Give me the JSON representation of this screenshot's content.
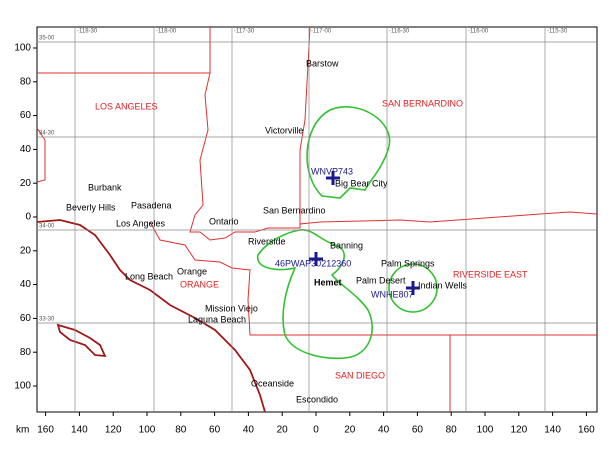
{
  "axes": {
    "unit": "km",
    "xticks": [
      {
        "value": -160,
        "label": "160"
      },
      {
        "value": -140,
        "label": "140"
      },
      {
        "value": -120,
        "label": "120"
      },
      {
        "value": -100,
        "label": "100"
      },
      {
        "value": -80,
        "label": "80"
      },
      {
        "value": -60,
        "label": "60"
      },
      {
        "value": -40,
        "label": "40"
      },
      {
        "value": -20,
        "label": "20"
      },
      0,
      20,
      40,
      60,
      80,
      100,
      120,
      140,
      160
    ],
    "yticks": [
      100,
      80,
      60,
      40,
      20,
      0,
      {
        "value": -20,
        "label": "20"
      },
      {
        "value": -40,
        "label": "40"
      },
      {
        "value": -60,
        "label": "60"
      },
      {
        "value": -80,
        "label": "80"
      },
      {
        "value": -100,
        "label": "100"
      }
    ]
  },
  "grid_labels": {
    "longitude": [
      "-118-30",
      "-118-00",
      "-117-30",
      "-117-00",
      "-116-30",
      "-116-00",
      "-115-30"
    ],
    "latitude": [
      "35-00",
      "34-30",
      "34-00",
      "33-30"
    ]
  },
  "counties": [
    "LOS ANGELES",
    "SAN BERNARDINO",
    "RIVERSIDE EAST",
    "ORANGE",
    "SAN DIEGO"
  ],
  "cities": [
    "Barstow",
    "Victorville",
    "Big Bear City",
    "San Bernardino",
    "Burbank",
    "Pasadena",
    "Beverly Hills",
    "Los Angeles",
    "Ontario",
    "Riverside",
    "Banning",
    "Palm Springs",
    "Palm Desert",
    "Hemet",
    "Indian Wells",
    "Long Beach",
    "Orange",
    "Mission Viejo",
    "Laguna Beach",
    "Oceanside",
    "Escondido"
  ],
  "stations": [
    "WNVP743",
    "46PWAP30212360",
    "WNHE807"
  ]
}
